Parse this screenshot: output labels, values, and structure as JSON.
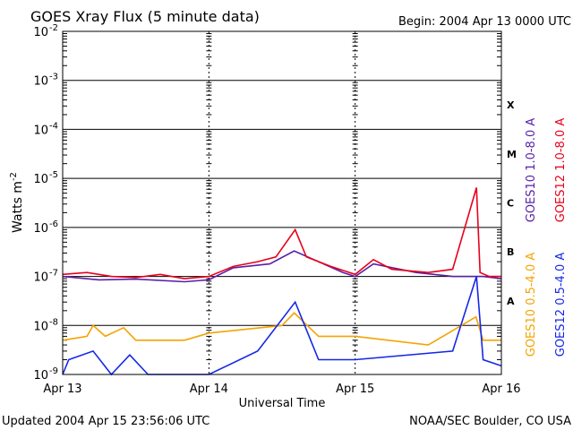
{
  "header": {
    "title": "GOES Xray Flux (5 minute data)",
    "begin": "Begin:  2004 Apr 13 0000 UTC"
  },
  "footer": {
    "updated": "Updated 2004 Apr 15 23:56:06 UTC",
    "credit": "NOAA/SEC Boulder, CO USA"
  },
  "chart_data": {
    "type": "line",
    "title": "GOES Xray Flux (5 minute data)",
    "xlabel": "Universal Time",
    "ylabel": "Watts m",
    "ylabel_superscript": "-2",
    "y_scale": "log",
    "ylim": [
      1e-09,
      0.01
    ],
    "xlim": [
      "2004-04-13T00:00",
      "2004-04-16T00:00"
    ],
    "x_ticks": [
      {
        "t": "2004-04-13T00:00",
        "label": "Apr 13"
      },
      {
        "t": "2004-04-14T00:00",
        "label": "Apr 14"
      },
      {
        "t": "2004-04-15T00:00",
        "label": "Apr 15"
      },
      {
        "t": "2004-04-16T00:00",
        "label": "Apr 16"
      }
    ],
    "y_ticks": [
      {
        "exp": -9,
        "base": "10",
        "sup": "-9"
      },
      {
        "exp": -8,
        "base": "10",
        "sup": "-8"
      },
      {
        "exp": -7,
        "base": "10",
        "sup": "-7"
      },
      {
        "exp": -6,
        "base": "10",
        "sup": "-6"
      },
      {
        "exp": -5,
        "base": "10",
        "sup": "-5"
      },
      {
        "exp": -4,
        "base": "10",
        "sup": "-4"
      },
      {
        "exp": -3,
        "base": "10",
        "sup": "-3"
      },
      {
        "exp": -2,
        "base": "10",
        "sup": "-2"
      }
    ],
    "flare_classes": [
      {
        "label": "A",
        "flux": 3.16e-08
      },
      {
        "label": "B",
        "flux": 3.16e-07
      },
      {
        "label": "C",
        "flux": 3.16e-06
      },
      {
        "label": "M",
        "flux": 3.16e-05
      },
      {
        "label": "X",
        "flux": 0.000316
      }
    ],
    "grid": true,
    "legend_placement": "right (vertical)",
    "series": [
      {
        "name": "GOES10 1.0-8.0 A",
        "color": "#5a1fa6",
        "points": [
          [
            "2004-04-13T00:00",
            1e-07
          ],
          [
            "2004-04-13T06:00",
            8.5e-08
          ],
          [
            "2004-04-13T12:00",
            8.8e-08
          ],
          [
            "2004-04-13T20:00",
            7.8e-08
          ],
          [
            "2004-04-14T00:00",
            8.5e-08
          ],
          [
            "2004-04-14T04:00",
            1.5e-07
          ],
          [
            "2004-04-14T10:00",
            1.8e-07
          ],
          [
            "2004-04-14T14:00",
            3.3e-07
          ],
          [
            "2004-04-14T18:00",
            2e-07
          ],
          [
            "2004-04-14T22:00",
            1.2e-07
          ],
          [
            "2004-04-15T00:00",
            1e-07
          ],
          [
            "2004-04-15T03:00",
            1.8e-07
          ],
          [
            "2004-04-15T10:00",
            1.2e-07
          ],
          [
            "2004-04-15T16:00",
            1e-07
          ],
          [
            "2004-04-15T21:00",
            1e-07
          ],
          [
            "2004-04-16T00:00",
            9e-08
          ]
        ]
      },
      {
        "name": "GOES12 1.0-8.0 A",
        "color": "#e8001c",
        "points": [
          [
            "2004-04-13T00:00",
            1.1e-07
          ],
          [
            "2004-04-13T04:00",
            1.2e-07
          ],
          [
            "2004-04-13T08:00",
            1e-07
          ],
          [
            "2004-04-13T12:00",
            9.5e-08
          ],
          [
            "2004-04-13T16:00",
            1.1e-07
          ],
          [
            "2004-04-13T20:00",
            9e-08
          ],
          [
            "2004-04-14T00:00",
            1e-07
          ],
          [
            "2004-04-14T04:00",
            1.6e-07
          ],
          [
            "2004-04-14T08:00",
            2e-07
          ],
          [
            "2004-04-14T11:00",
            2.5e-07
          ],
          [
            "2004-04-14T14:10",
            9e-07
          ],
          [
            "2004-04-14T16:00",
            2.5e-07
          ],
          [
            "2004-04-14T20:00",
            1.6e-07
          ],
          [
            "2004-04-15T00:00",
            1.1e-07
          ],
          [
            "2004-04-15T03:00",
            2.2e-07
          ],
          [
            "2004-04-15T06:00",
            1.4e-07
          ],
          [
            "2004-04-15T12:00",
            1.2e-07
          ],
          [
            "2004-04-15T16:00",
            1.4e-07
          ],
          [
            "2004-04-15T19:55",
            6.5e-06
          ],
          [
            "2004-04-15T20:30",
            1.2e-07
          ],
          [
            "2004-04-15T22:00",
            1e-07
          ],
          [
            "2004-04-16T00:00",
            1e-07
          ]
        ]
      },
      {
        "name": "GOES10 0.5-4.0 A",
        "color": "#f5a300",
        "points": [
          [
            "2004-04-13T00:00",
            5e-09
          ],
          [
            "2004-04-13T04:00",
            6e-09
          ],
          [
            "2004-04-13T05:00",
            1e-08
          ],
          [
            "2004-04-13T07:00",
            6e-09
          ],
          [
            "2004-04-13T10:00",
            9e-09
          ],
          [
            "2004-04-13T12:00",
            5e-09
          ],
          [
            "2004-04-13T20:00",
            5e-09
          ],
          [
            "2004-04-14T00:00",
            7e-09
          ],
          [
            "2004-04-14T12:00",
            1e-08
          ],
          [
            "2004-04-14T14:00",
            1.8e-08
          ],
          [
            "2004-04-14T18:00",
            6e-09
          ],
          [
            "2004-04-15T00:00",
            6e-09
          ],
          [
            "2004-04-15T12:00",
            4e-09
          ],
          [
            "2004-04-15T19:50",
            1.5e-08
          ],
          [
            "2004-04-15T21:00",
            5e-09
          ],
          [
            "2004-04-16T00:00",
            5e-09
          ]
        ]
      },
      {
        "name": "GOES12 0.5-4.0 A",
        "color": "#1428e6",
        "points": [
          [
            "2004-04-13T00:00",
            1e-09
          ],
          [
            "2004-04-13T01:00",
            2e-09
          ],
          [
            "2004-04-13T05:00",
            3e-09
          ],
          [
            "2004-04-13T08:00",
            1e-09
          ],
          [
            "2004-04-13T11:00",
            2.5e-09
          ],
          [
            "2004-04-13T14:00",
            1e-09
          ],
          [
            "2004-04-13T22:00",
            1e-09
          ],
          [
            "2004-04-14T00:00",
            1e-09
          ],
          [
            "2004-04-14T08:00",
            3e-09
          ],
          [
            "2004-04-14T14:10",
            3e-08
          ],
          [
            "2004-04-14T18:00",
            2e-09
          ],
          [
            "2004-04-15T00:00",
            2e-09
          ],
          [
            "2004-04-15T16:00",
            3e-09
          ],
          [
            "2004-04-15T19:55",
            1e-07
          ],
          [
            "2004-04-15T21:00",
            2e-09
          ],
          [
            "2004-04-16T00:00",
            1.5e-09
          ]
        ]
      }
    ]
  },
  "colors": {
    "g10_long": "#5a1fa6",
    "g12_long": "#e8001c",
    "g10_short": "#f5a300",
    "g12_short": "#1428e6"
  }
}
